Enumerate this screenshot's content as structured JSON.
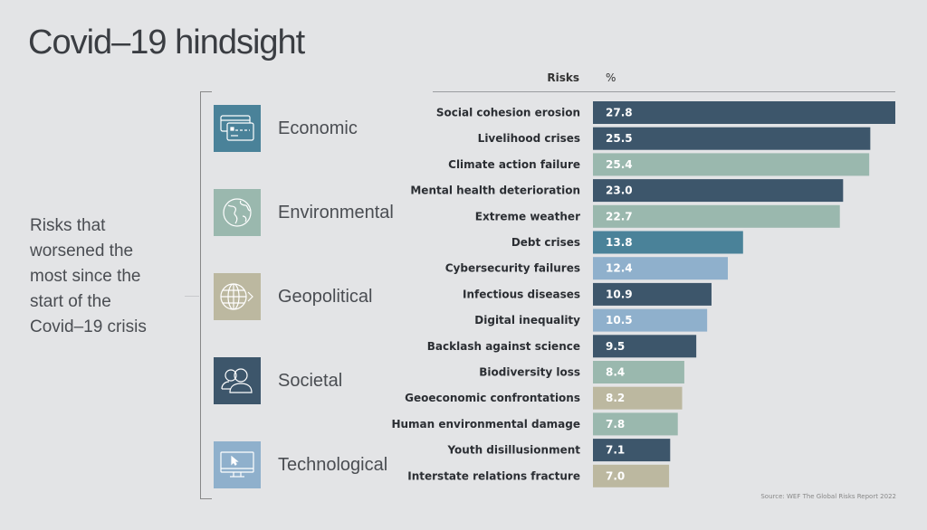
{
  "title": "Covid–19 hindsight",
  "subtitle": "Risks that worsened the most since the start of the Covid–19 crisis",
  "source": "Source: WEF The Global Risks Report 2022",
  "categories": [
    {
      "key": "economic",
      "label": "Economic",
      "icon": "credit-card-icon",
      "color": "#4a8299"
    },
    {
      "key": "environmental",
      "label": "Environmental",
      "icon": "globe-icon",
      "color": "#9ab8ae"
    },
    {
      "key": "geopolitical",
      "label": "Geopolitical",
      "icon": "globe-arrow-icon",
      "color": "#bcb8a0"
    },
    {
      "key": "societal",
      "label": "Societal",
      "icon": "people-icon",
      "color": "#3d566b"
    },
    {
      "key": "technological",
      "label": "Technological",
      "icon": "monitor-cursor-icon",
      "color": "#8fb0cc"
    }
  ],
  "chart_data": {
    "type": "bar",
    "orientation": "horizontal",
    "column_headers": {
      "risks": "Risks",
      "value": "%"
    },
    "categories": [
      "Social cohesion erosion",
      "Livelihood crises",
      "Climate action failure",
      "Mental health deterioration",
      "Extreme weather",
      "Debt crises",
      "Cybersecurity failures",
      "Infectious diseases",
      "Digital inequality",
      "Backlash against science",
      "Biodiversity loss",
      "Geoeconomic confrontations",
      "Human environmental damage",
      "Youth disillusionment",
      "Interstate relations fracture"
    ],
    "values": [
      27.8,
      25.5,
      25.4,
      23.0,
      22.7,
      13.8,
      12.4,
      10.9,
      10.5,
      9.5,
      8.4,
      8.2,
      7.8,
      7.1,
      7.0
    ],
    "value_labels": [
      "27.8",
      "25.5",
      "25.4",
      "23.0",
      "22.7",
      "13.8",
      "12.4",
      "10.9",
      "10.5",
      "9.5",
      "8.4",
      "8.2",
      "7.8",
      "7.1",
      "7.0"
    ],
    "bar_category": [
      "societal",
      "societal",
      "environmental",
      "societal",
      "environmental",
      "economic",
      "technological",
      "societal",
      "technological",
      "societal",
      "environmental",
      "geopolitical",
      "environmental",
      "societal",
      "geopolitical"
    ],
    "xlim": [
      0,
      27.8
    ],
    "grid": false
  }
}
